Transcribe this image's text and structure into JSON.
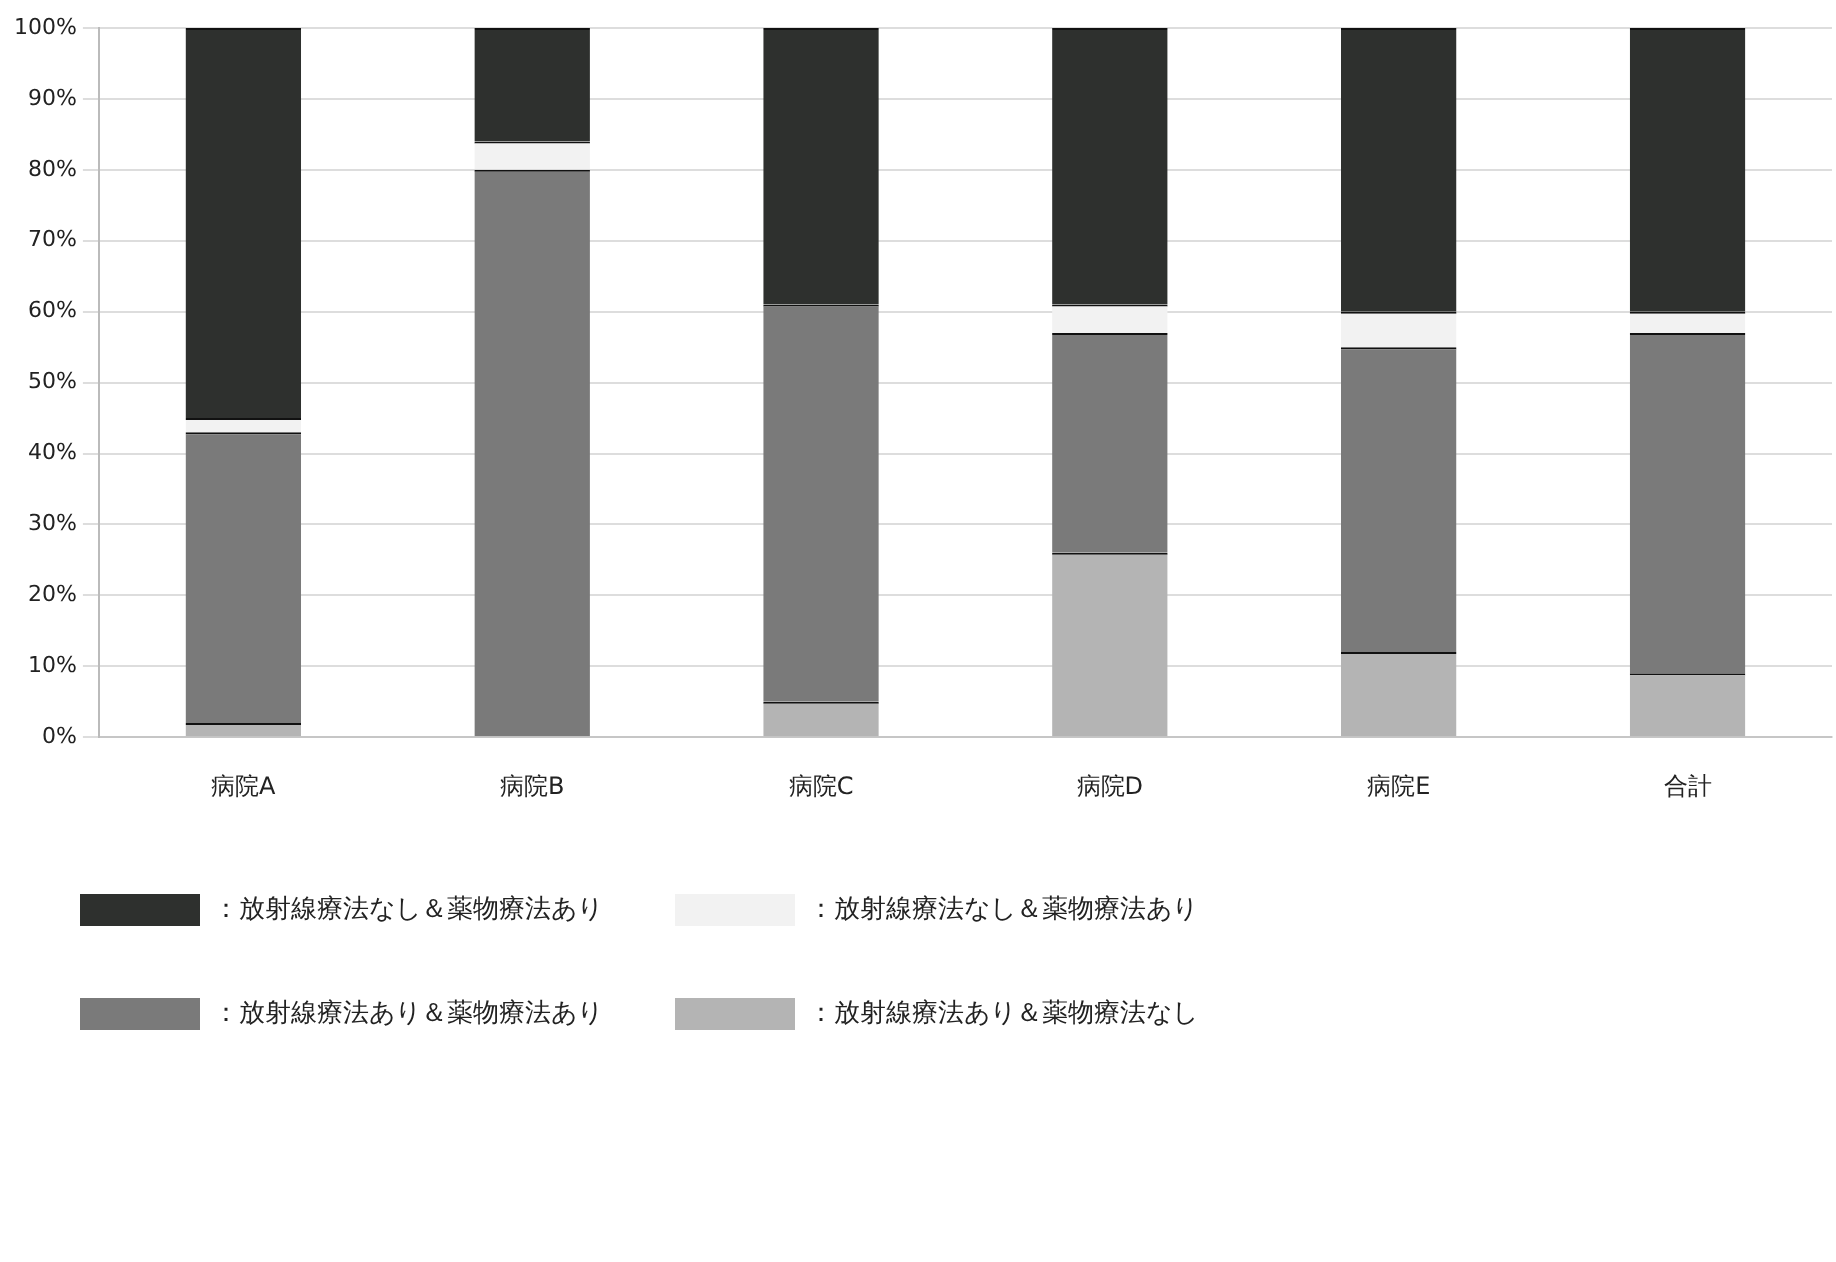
{
  "chart_data": {
    "type": "bar",
    "stacked": true,
    "categories": [
      "病院A",
      "病院B",
      "病院C",
      "病院D",
      "病院E",
      "合計"
    ],
    "series": [
      {
        "name": "：放射線療法あり＆薬物療法なし",
        "color": "#b4b4b4",
        "values": [
          2,
          0,
          5,
          26,
          12,
          9
        ]
      },
      {
        "name": "：放射線療法あり＆薬物療法あり",
        "color": "#7a7a7a",
        "values": [
          41,
          80,
          56,
          31,
          43,
          48
        ]
      },
      {
        "name": "：放射線療法なし＆薬物療法あり",
        "color": "#f2f2f2",
        "values": [
          2,
          4,
          0,
          4,
          5,
          3
        ]
      },
      {
        "name": "：放射線療法なし＆薬物療法あり",
        "color": "#2e302e",
        "values": [
          55,
          16,
          39,
          39,
          40,
          40
        ]
      }
    ],
    "ylim": [
      0,
      100
    ],
    "yticks": [
      {
        "value": 0,
        "label": "0%"
      },
      {
        "value": 10,
        "label": "10%"
      },
      {
        "value": 20,
        "label": "20%"
      },
      {
        "value": 30,
        "label": "30%"
      },
      {
        "value": 40,
        "label": "40%"
      },
      {
        "value": 50,
        "label": "50%"
      },
      {
        "value": 60,
        "label": "60%"
      },
      {
        "value": 70,
        "label": "70%"
      },
      {
        "value": 80,
        "label": "80%"
      },
      {
        "value": 90,
        "label": "90%"
      },
      {
        "value": 100,
        "label": "100%"
      }
    ],
    "grid": "y",
    "legend": "bottom"
  }
}
